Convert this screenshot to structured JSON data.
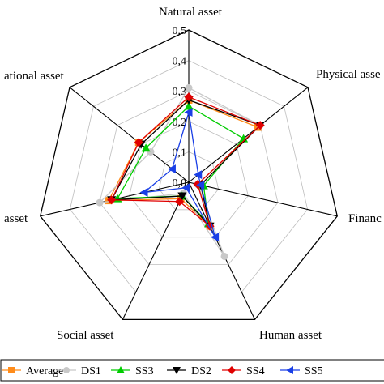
{
  "chart_data": {
    "type": "radar",
    "axes": [
      "Natural asset",
      "Physical asset",
      "Financial asset",
      "Human asset",
      "Social asset",
      "Social asset",
      "Institutional asset"
    ],
    "axis_labels_visible": [
      "Natural asset",
      "Physical asse",
      "Financ",
      "Human asset",
      "Social asset",
      "asset",
      "ational asset"
    ],
    "rlim": [
      0,
      0.5
    ],
    "ticks": [
      0.0,
      0.1,
      0.2,
      0.3,
      0.4,
      0.5
    ],
    "tick_labels": [
      "0,0",
      "0,1",
      "0,2",
      "0,3",
      "0,4",
      "0,5"
    ],
    "grid": true,
    "legend_position": "bottom",
    "series": [
      {
        "name": "Average",
        "color": "#ff8c1a",
        "marker": "square",
        "values": [
          0.27,
          0.29,
          0.04,
          0.16,
          0.06,
          0.27,
          0.21
        ]
      },
      {
        "name": "DS1",
        "color": "#c8c8c8",
        "marker": "circle",
        "values": [
          0.31,
          0.3,
          0.03,
          0.27,
          0.04,
          0.3,
          0.16
        ]
      },
      {
        "name": "SS3",
        "color": "#00cc00",
        "marker": "triangle-up",
        "values": [
          0.25,
          0.23,
          0.05,
          0.15,
          0.05,
          0.24,
          0.18
        ]
      },
      {
        "name": "DS2",
        "color": "#000000",
        "marker": "triangle-down",
        "values": [
          0.27,
          0.3,
          0.04,
          0.16,
          0.05,
          0.26,
          0.2
        ]
      },
      {
        "name": "SS4",
        "color": "#e00000",
        "marker": "diamond",
        "values": [
          0.28,
          0.3,
          0.03,
          0.16,
          0.07,
          0.26,
          0.21
        ]
      },
      {
        "name": "SS5",
        "color": "#1a3fe6",
        "marker": "triangle-left",
        "values": [
          0.23,
          0.04,
          0.04,
          0.2,
          0.02,
          0.15,
          0.07
        ]
      }
    ]
  }
}
